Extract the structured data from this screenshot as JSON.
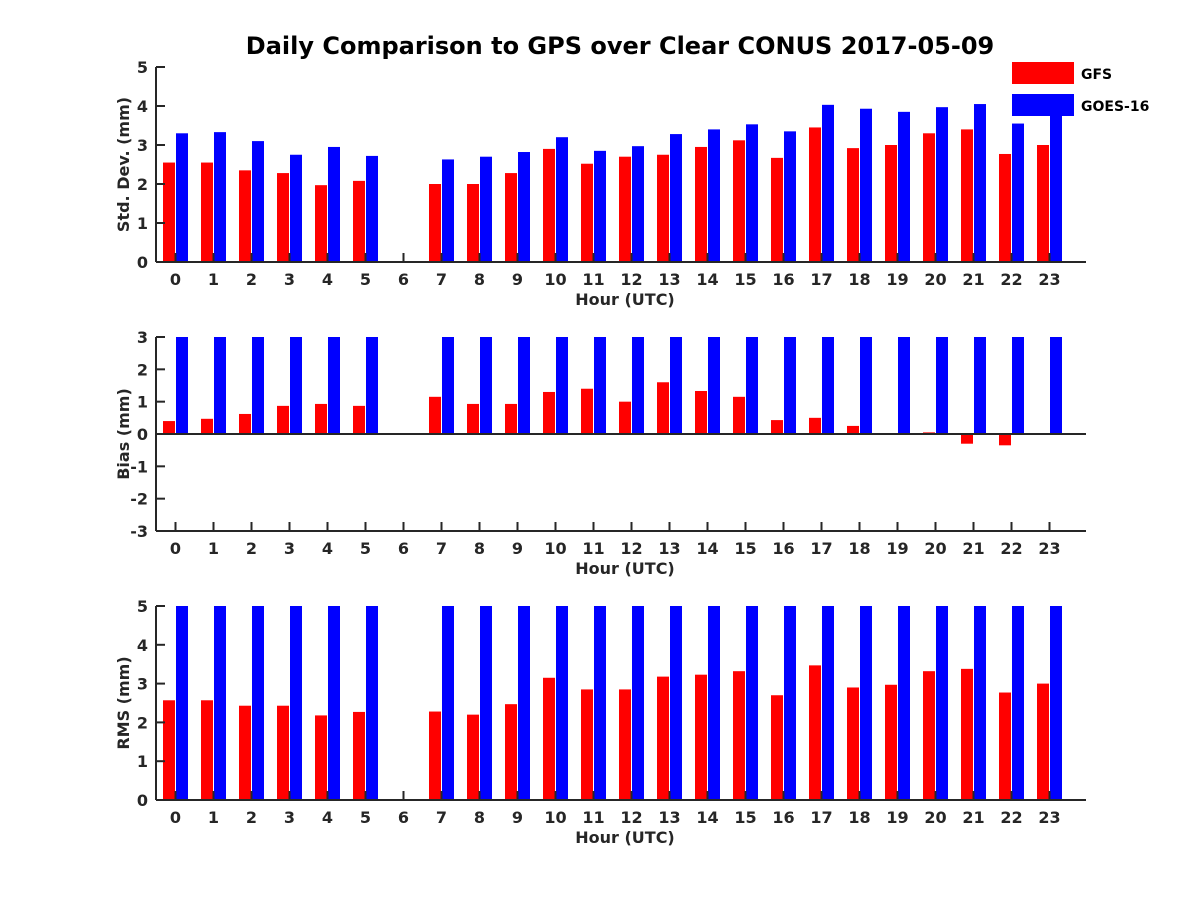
{
  "chart_data": {
    "type": "bar",
    "title": "Daily Comparison to GPS over Clear CONUS 2017-05-09",
    "categories": [
      "0",
      "1",
      "2",
      "3",
      "4",
      "5",
      "6",
      "7",
      "8",
      "9",
      "10",
      "11",
      "12",
      "13",
      "14",
      "15",
      "16",
      "17",
      "18",
      "19",
      "20",
      "21",
      "22",
      "23"
    ],
    "legend": {
      "placement": "top-right",
      "entries": [
        {
          "name": "GFS",
          "color": "#ff0000"
        },
        {
          "name": "GOES-16",
          "color": "#0000ff"
        }
      ]
    },
    "panels": [
      {
        "ylabel": "Std. Dev. (mm)",
        "xlabel": "Hour (UTC)",
        "ylim": [
          0,
          5
        ],
        "yticks": [
          "0",
          "1",
          "2",
          "3",
          "4",
          "5"
        ],
        "series": [
          {
            "name": "GFS",
            "color": "#ff0000",
            "values": [
              2.55,
              2.55,
              2.35,
              2.28,
              1.97,
              2.08,
              null,
              2.0,
              2.0,
              2.28,
              2.9,
              2.52,
              2.7,
              2.75,
              2.95,
              3.12,
              2.67,
              3.45,
              2.92,
              3.0,
              3.3,
              3.4,
              2.77,
              3.0
            ]
          },
          {
            "name": "GOES-16",
            "color": "#0000ff",
            "values": [
              3.3,
              3.33,
              3.1,
              2.75,
              2.95,
              2.72,
              null,
              2.63,
              2.7,
              2.82,
              3.2,
              2.85,
              2.97,
              3.28,
              3.4,
              3.53,
              3.35,
              4.03,
              3.93,
              3.85,
              3.97,
              4.05,
              3.55,
              3.9
            ]
          }
        ]
      },
      {
        "ylabel": "Bias (mm)",
        "xlabel": "Hour (UTC)",
        "ylim": [
          -3,
          3
        ],
        "yticks": [
          "-3",
          "-2",
          "-1",
          "0",
          "1",
          "2",
          "3"
        ],
        "series": [
          {
            "name": "GFS",
            "color": "#ff0000",
            "values": [
              0.4,
              0.47,
              0.62,
              0.87,
              0.93,
              0.87,
              null,
              1.15,
              0.93,
              0.93,
              1.3,
              1.4,
              1.0,
              1.6,
              1.33,
              1.15,
              0.43,
              0.5,
              0.25,
              0.02,
              0.05,
              -0.3,
              -0.35,
              0.0
            ]
          },
          {
            "name": "GOES-16",
            "color": "#0000ff",
            "values": [
              3.0,
              3.0,
              3.0,
              3.0,
              3.0,
              3.0,
              null,
              3.0,
              3.0,
              3.0,
              3.0,
              3.0,
              3.0,
              3.0,
              3.0,
              3.0,
              3.0,
              3.0,
              3.0,
              3.0,
              3.0,
              3.0,
              3.0,
              3.0
            ]
          }
        ]
      },
      {
        "ylabel": "RMS (mm)",
        "xlabel": "Hour (UTC)",
        "ylim": [
          0,
          5
        ],
        "yticks": [
          "0",
          "1",
          "2",
          "3",
          "4",
          "5"
        ],
        "series": [
          {
            "name": "GFS",
            "color": "#ff0000",
            "values": [
              2.57,
              2.57,
              2.43,
              2.43,
              2.18,
              2.27,
              null,
              2.28,
              2.2,
              2.47,
              3.15,
              2.85,
              2.85,
              3.18,
              3.23,
              3.32,
              2.7,
              3.47,
              2.9,
              2.97,
              3.32,
              3.38,
              2.77,
              3.0
            ]
          },
          {
            "name": "GOES-16",
            "color": "#0000ff",
            "values": [
              5.0,
              5.0,
              5.0,
              5.0,
              5.0,
              5.0,
              null,
              5.0,
              5.0,
              5.0,
              5.0,
              5.0,
              5.0,
              5.0,
              5.0,
              5.0,
              5.0,
              5.0,
              5.0,
              5.0,
              5.0,
              5.0,
              5.0,
              5.0
            ]
          }
        ]
      }
    ]
  }
}
